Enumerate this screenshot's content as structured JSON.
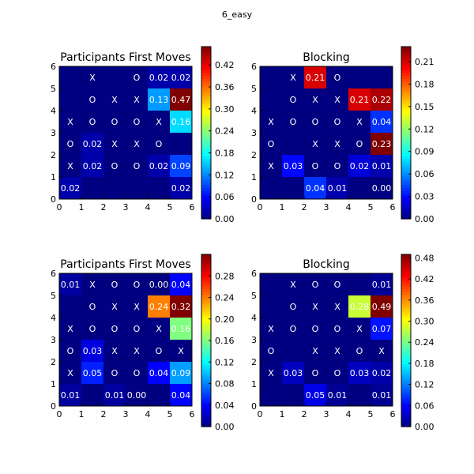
{
  "figure_title": "6_easy",
  "chart_data": [
    {
      "type": "heatmap",
      "title": "Participants First Moves",
      "xlim": [
        0,
        6
      ],
      "ylim": [
        0,
        6
      ],
      "ticks": [
        "0",
        "1",
        "2",
        "3",
        "4",
        "5",
        "6"
      ],
      "colorbar": {
        "min": 0.0,
        "max": 0.47,
        "ticks": [
          "0.00",
          "0.06",
          "0.12",
          "0.18",
          "0.24",
          "0.30",
          "0.36",
          "0.42"
        ]
      },
      "board": [
        [
          "",
          "X",
          "",
          "O",
          "",
          ""
        ],
        [
          "",
          "O",
          "X",
          "X",
          "",
          ""
        ],
        [
          "X",
          "O",
          "O",
          "O",
          "X",
          ""
        ],
        [
          "O",
          "",
          "X",
          "X",
          "O",
          ""
        ],
        [
          "X",
          "",
          "O",
          "O",
          "",
          ""
        ],
        [
          "",
          "",
          "",
          "",
          "",
          ""
        ]
      ],
      "values": [
        [
          0,
          0,
          0,
          0,
          0.02,
          0.02
        ],
        [
          0,
          0,
          0,
          0,
          0.13,
          0.47
        ],
        [
          0,
          0,
          0,
          0,
          0,
          0.16
        ],
        [
          0,
          0.02,
          0,
          0,
          0,
          0
        ],
        [
          0,
          0.02,
          0,
          0,
          0.02,
          0.09
        ],
        [
          0.02,
          0,
          0,
          0,
          0,
          0.02
        ]
      ],
      "labels": [
        [
          "",
          "",
          "",
          "",
          "0.02",
          "0.02"
        ],
        [
          "",
          "",
          "",
          "",
          "0.13",
          "0.47"
        ],
        [
          "",
          "",
          "",
          "",
          "",
          "0.16"
        ],
        [
          "",
          "0.02",
          "",
          "",
          "",
          ""
        ],
        [
          "",
          "0.02",
          "",
          "",
          "0.02",
          "0.09"
        ],
        [
          "0.02",
          "",
          "",
          "",
          "",
          "0.02"
        ]
      ]
    },
    {
      "type": "heatmap",
      "title": "Blocking",
      "xlim": [
        0,
        6
      ],
      "ylim": [
        0,
        6
      ],
      "ticks": [
        "0",
        "1",
        "2",
        "3",
        "4",
        "5",
        "6"
      ],
      "colorbar": {
        "min": 0.0,
        "max": 0.23,
        "ticks": [
          "0.00",
          "0.03",
          "0.06",
          "0.09",
          "0.12",
          "0.15",
          "0.18",
          "0.21"
        ]
      },
      "board": [
        [
          "",
          "X",
          "",
          "O",
          "",
          ""
        ],
        [
          "",
          "O",
          "X",
          "X",
          "",
          ""
        ],
        [
          "X",
          "O",
          "O",
          "O",
          "X",
          ""
        ],
        [
          "O",
          "",
          "X",
          "X",
          "O",
          ""
        ],
        [
          "X",
          "",
          "O",
          "O",
          "",
          ""
        ],
        [
          "",
          "",
          "",
          "",
          "",
          ""
        ]
      ],
      "values": [
        [
          0,
          0,
          0.21,
          0,
          0,
          0
        ],
        [
          0,
          0,
          0,
          0,
          0.21,
          0.22
        ],
        [
          0,
          0,
          0,
          0,
          0,
          0.04
        ],
        [
          0,
          0,
          0,
          0,
          0,
          0.23
        ],
        [
          0,
          0.03,
          0,
          0,
          0.02,
          0.01
        ],
        [
          0,
          0,
          0.04,
          0.01,
          0,
          0.0
        ]
      ],
      "labels": [
        [
          "",
          "",
          "0.21",
          "",
          "",
          ""
        ],
        [
          "",
          "",
          "",
          "",
          "0.21",
          "0.22"
        ],
        [
          "",
          "",
          "",
          "",
          "",
          "0.04"
        ],
        [
          "",
          "",
          "",
          "",
          "",
          "0.23"
        ],
        [
          "",
          "0.03",
          "",
          "",
          "0.02",
          "0.01"
        ],
        [
          "",
          "",
          "0.04",
          "0.01",
          "",
          "0.00"
        ]
      ]
    },
    {
      "type": "heatmap",
      "title": "Participants First Moves",
      "xlim": [
        0,
        6
      ],
      "ylim": [
        0,
        6
      ],
      "ticks": [
        "0",
        "1",
        "2",
        "3",
        "4",
        "5",
        "6"
      ],
      "colorbar": {
        "min": 0.0,
        "max": 0.32,
        "ticks": [
          "0.00",
          "0.04",
          "0.08",
          "0.12",
          "0.16",
          "0.20",
          "0.24",
          "0.28"
        ]
      },
      "board": [
        [
          "",
          "X",
          "O",
          "O",
          "",
          ""
        ],
        [
          "",
          "O",
          "X",
          "X",
          "",
          ""
        ],
        [
          "X",
          "O",
          "O",
          "O",
          "X",
          ""
        ],
        [
          "O",
          "",
          "X",
          "X",
          "O",
          "X"
        ],
        [
          "X",
          "",
          "O",
          "O",
          "",
          ""
        ],
        [
          "",
          "",
          "",
          "",
          "",
          ""
        ]
      ],
      "values": [
        [
          0.01,
          0,
          0,
          0,
          0.0,
          0.04
        ],
        [
          0,
          0,
          0,
          0,
          0.24,
          0.32
        ],
        [
          0,
          0,
          0,
          0,
          0,
          0.16
        ],
        [
          0,
          0.03,
          0,
          0,
          0,
          0
        ],
        [
          0,
          0.05,
          0,
          0,
          0.04,
          0.09
        ],
        [
          0.01,
          0,
          0.01,
          0.0,
          0,
          0.04
        ]
      ],
      "labels": [
        [
          "0.01",
          "",
          "",
          "",
          "0.00",
          "0.04"
        ],
        [
          "",
          "",
          "",
          "",
          "0.24",
          "0.32"
        ],
        [
          "",
          "",
          "",
          "",
          "",
          "0.16"
        ],
        [
          "",
          "0.03",
          "",
          "",
          "",
          ""
        ],
        [
          "",
          "0.05",
          "",
          "",
          "0.04",
          "0.09"
        ],
        [
          "0.01",
          "",
          "0.01",
          "0.00",
          "",
          "0.04"
        ]
      ]
    },
    {
      "type": "heatmap",
      "title": "Blocking",
      "xlim": [
        0,
        6
      ],
      "ylim": [
        0,
        6
      ],
      "ticks": [
        "0",
        "1",
        "2",
        "3",
        "4",
        "5",
        "6"
      ],
      "colorbar": {
        "min": 0.0,
        "max": 0.49,
        "ticks": [
          "0.00",
          "0.06",
          "0.12",
          "0.18",
          "0.24",
          "0.30",
          "0.36",
          "0.42",
          "0.48"
        ]
      },
      "board": [
        [
          "",
          "X",
          "O",
          "O",
          "",
          ""
        ],
        [
          "",
          "O",
          "X",
          "X",
          "",
          ""
        ],
        [
          "X",
          "O",
          "O",
          "O",
          "X",
          ""
        ],
        [
          "O",
          "",
          "X",
          "X",
          "O",
          "X"
        ],
        [
          "X",
          "",
          "O",
          "O",
          "",
          ""
        ],
        [
          "",
          "",
          "",
          "",
          "",
          ""
        ]
      ],
      "values": [
        [
          0,
          0,
          0,
          0,
          0,
          0.01
        ],
        [
          0,
          0,
          0,
          0,
          0.28,
          0.49
        ],
        [
          0,
          0,
          0,
          0,
          0,
          0.07
        ],
        [
          0,
          0,
          0,
          0,
          0,
          0
        ],
        [
          0,
          0.03,
          0,
          0,
          0.03,
          0.02
        ],
        [
          0,
          0,
          0.05,
          0.01,
          0,
          0.01
        ]
      ],
      "labels": [
        [
          "",
          "",
          "",
          "",
          "",
          "0.01"
        ],
        [
          "",
          "",
          "",
          "",
          "0.28",
          "0.49"
        ],
        [
          "",
          "",
          "",
          "",
          "",
          "0.07"
        ],
        [
          "",
          "",
          "",
          "",
          "",
          ""
        ],
        [
          "",
          "0.03",
          "",
          "",
          "0.03",
          "0.02"
        ],
        [
          "",
          "",
          "0.05",
          "0.01",
          "",
          "0.01"
        ]
      ]
    }
  ]
}
